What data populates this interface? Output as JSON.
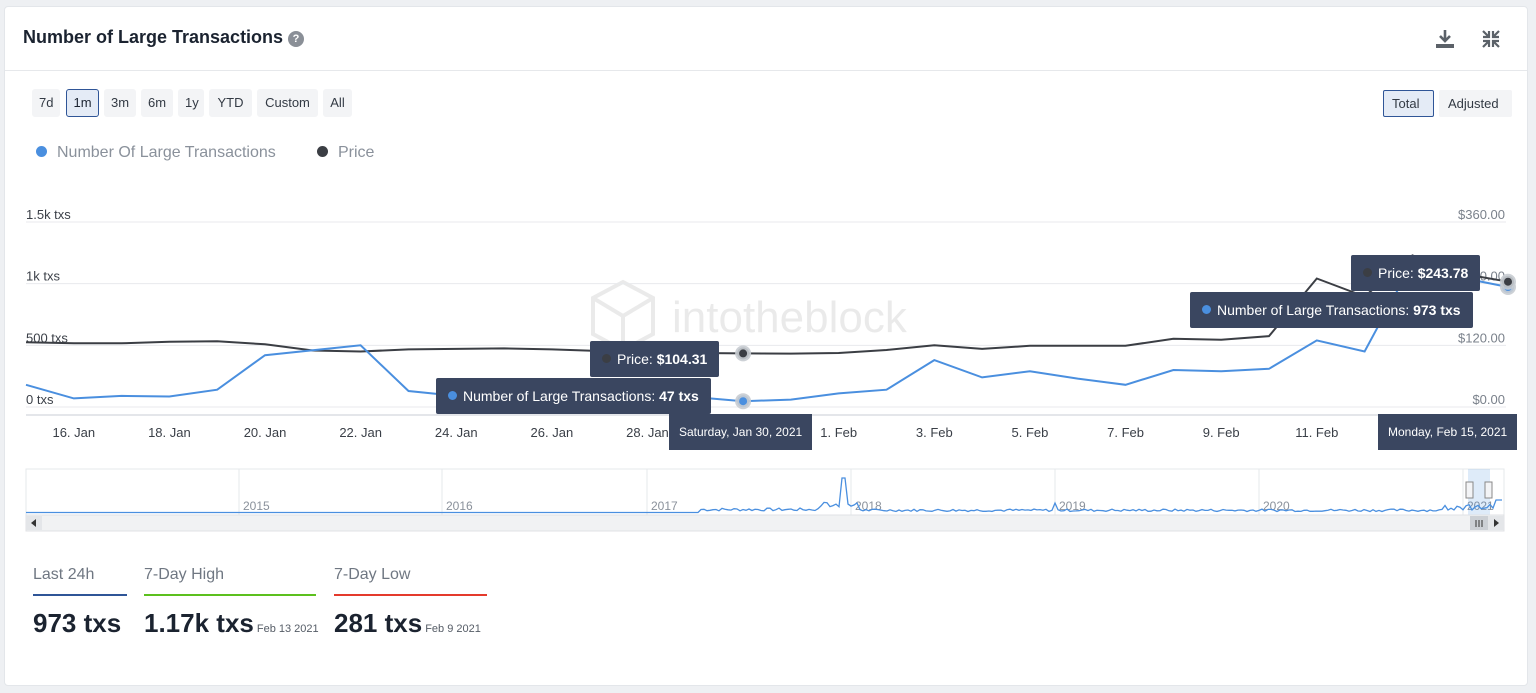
{
  "header": {
    "title": "Number of Large Transactions",
    "help_icon": "question-circle-icon",
    "download_icon": "download-icon",
    "collapse_icon": "compress-icon"
  },
  "ranges": [
    "7d",
    "1m",
    "3m",
    "6m",
    "1y",
    "YTD",
    "Custom",
    "All"
  ],
  "active_range": "1m",
  "modes": [
    "Total",
    "Adjusted"
  ],
  "active_mode": "Total",
  "colors": {
    "transactions": "#4a8fdf",
    "price": "#3b3e44",
    "accent": "#2f5597",
    "high": "#5cc01e",
    "low": "#e43a2c"
  },
  "watermark": "intotheblock",
  "chart_data": {
    "type": "line",
    "x": [
      "2021-01-15",
      "2021-01-16",
      "2021-01-17",
      "2021-01-18",
      "2021-01-19",
      "2021-01-20",
      "2021-01-21",
      "2021-01-22",
      "2021-01-23",
      "2021-01-24",
      "2021-01-25",
      "2021-01-26",
      "2021-01-27",
      "2021-01-28",
      "2021-01-29",
      "2021-01-30",
      "2021-01-31",
      "2021-02-01",
      "2021-02-02",
      "2021-02-03",
      "2021-02-04",
      "2021-02-05",
      "2021-02-06",
      "2021-02-07",
      "2021-02-08",
      "2021-02-09",
      "2021-02-10",
      "2021-02-11",
      "2021-02-12",
      "2021-02-13",
      "2021-02-14",
      "2021-02-15"
    ],
    "x_tick_labels": [
      "16. Jan",
      "18. Jan",
      "20. Jan",
      "22. Jan",
      "24. Jan",
      "26. Jan",
      "28. Jan",
      "1. Feb",
      "3. Feb",
      "5. Feb",
      "7. Feb",
      "9. Feb",
      "11. Feb"
    ],
    "series": [
      {
        "name": "Number Of Large Transactions",
        "axis": "left",
        "values": [
          180,
          70,
          90,
          85,
          140,
          420,
          460,
          500,
          130,
          90,
          95,
          85,
          80,
          80,
          80,
          47,
          60,
          110,
          140,
          380,
          240,
          290,
          230,
          180,
          300,
          290,
          310,
          540,
          450,
          1170,
          1050,
          973
        ]
      },
      {
        "name": "Price",
        "axis": "right",
        "values": [
          126,
          124,
          124,
          127,
          128,
          122,
          110,
          108,
          112,
          113,
          114,
          112,
          109,
          106,
          105,
          104.31,
          104,
          105,
          111,
          120,
          113,
          119,
          119,
          119,
          133,
          131,
          138,
          250,
          215,
          295,
          260,
          243.78
        ]
      }
    ],
    "y_left": {
      "ticks": [
        "0 txs",
        "500 txs",
        "1k txs",
        "1.5k txs"
      ],
      "range": [
        0,
        1500
      ]
    },
    "y_right": {
      "ticks": [
        "$0.00",
        "$120.00",
        "$240.00",
        "$360.00"
      ],
      "range": [
        0,
        360
      ]
    },
    "navigator_years": [
      "2015",
      "2016",
      "2017",
      "2018",
      "2019",
      "2020",
      "2021"
    ],
    "tooltips": [
      {
        "date": "Saturday, Jan 30, 2021",
        "price_label": "Price:",
        "price_value": "$104.31",
        "tx_label": "Number of Large Transactions:",
        "tx_value": "47 txs"
      },
      {
        "date": "Monday, Feb 15, 2021",
        "price_label": "Price:",
        "price_value": "$243.78",
        "tx_label": "Number of Large Transactions:",
        "tx_value": "973 txs"
      }
    ]
  },
  "stats": [
    {
      "label": "Last 24h",
      "value": "973 txs",
      "date": "",
      "color": "#2f5597"
    },
    {
      "label": "7-Day High",
      "value": "1.17k txs",
      "date": "Feb 13 2021",
      "color": "#5cc01e"
    },
    {
      "label": "7-Day Low",
      "value": "281 txs",
      "date": "Feb 9 2021",
      "color": "#e43a2c"
    }
  ]
}
